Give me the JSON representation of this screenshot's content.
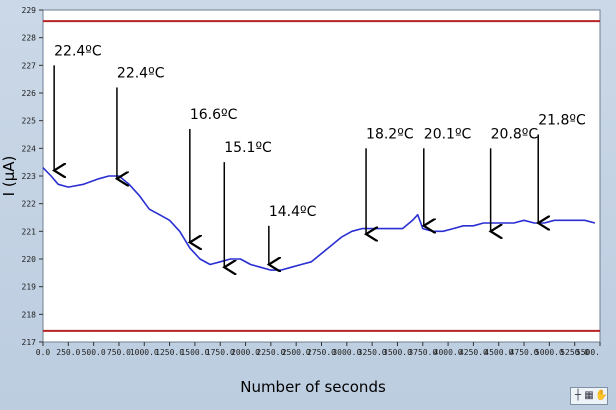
{
  "chart_data": {
    "type": "line",
    "title": "",
    "xlabel": "Number of seconds",
    "ylabel": "I (μA)",
    "xlim": [
      0,
      5500
    ],
    "ylim": [
      217,
      229
    ],
    "grid": false,
    "legend": "none",
    "x_ticks": [
      "0.0",
      "250.0",
      "500.0",
      "750.0",
      "1000.0",
      "1250.0",
      "1500.0",
      "1750.0",
      "2000.0",
      "2250.0",
      "2500.0",
      "2750.0",
      "3000.0",
      "3250.0",
      "3500.0",
      "3750.0",
      "4000.0",
      "4250.0",
      "4500.0",
      "4750.0",
      "5000.0",
      "5250.0",
      "5500."
    ],
    "y_ticks": [
      "217",
      "218",
      "219",
      "220",
      "221",
      "222",
      "223",
      "224",
      "225",
      "226",
      "227",
      "228",
      "229"
    ],
    "series": [
      {
        "color": "#2a2fd2",
        "x": [
          0,
          80,
          150,
          250,
          400,
          550,
          650,
          750,
          850,
          950,
          1050,
          1150,
          1250,
          1350,
          1450,
          1550,
          1650,
          1750,
          1850,
          1950,
          2050,
          2150,
          2250,
          2350,
          2450,
          2550,
          2650,
          2750,
          2850,
          2950,
          3050,
          3150,
          3250,
          3350,
          3450,
          3550,
          3650,
          3700,
          3750,
          3850,
          3950,
          4050,
          4150,
          4250,
          4350,
          4450,
          4550,
          4650,
          4750,
          4850,
          4950,
          5050,
          5150,
          5250,
          5350,
          5450
        ],
        "y": [
          223.3,
          223.0,
          222.7,
          222.6,
          222.7,
          222.9,
          223.0,
          223.0,
          222.7,
          222.3,
          221.8,
          221.6,
          221.4,
          221.0,
          220.4,
          220.0,
          219.8,
          219.9,
          220.0,
          220.0,
          219.8,
          219.7,
          219.6,
          219.6,
          219.7,
          219.8,
          219.9,
          220.2,
          220.5,
          220.8,
          221.0,
          221.1,
          221.1,
          221.1,
          221.1,
          221.1,
          221.4,
          221.6,
          221.1,
          221.0,
          221.0,
          221.1,
          221.2,
          221.2,
          221.3,
          221.3,
          221.3,
          221.3,
          221.4,
          221.3,
          221.3,
          221.4,
          221.4,
          221.4,
          221.4,
          221.3
        ]
      }
    ],
    "reference_lines": [
      {
        "y": 228.6,
        "color": "#b52424"
      },
      {
        "y": 217.4,
        "color": "#b52424"
      }
    ],
    "annotations": [
      {
        "text": "22.4ºC",
        "x": 110,
        "arrow_top_y": 227.0,
        "arrow_tip_y": 223.2
      },
      {
        "text": "22.4ºC",
        "x": 730,
        "arrow_top_y": 226.2,
        "arrow_tip_y": 222.9
      },
      {
        "text": "16.6ºC",
        "x": 1450,
        "arrow_top_y": 224.7,
        "arrow_tip_y": 220.6
      },
      {
        "text": "15.1ºC",
        "x": 1790,
        "arrow_top_y": 223.5,
        "arrow_tip_y": 219.7
      },
      {
        "text": "14.4ºC",
        "x": 2230,
        "arrow_top_y": 221.2,
        "arrow_tip_y": 219.8
      },
      {
        "text": "18.2ºC",
        "x": 3190,
        "arrow_top_y": 224.0,
        "arrow_tip_y": 220.9
      },
      {
        "text": "20.1ºC",
        "x": 3760,
        "arrow_top_y": 224.0,
        "arrow_tip_y": 221.2
      },
      {
        "text": "20.8ºC",
        "x": 4420,
        "arrow_top_y": 224.0,
        "arrow_tip_y": 221.0
      },
      {
        "text": "21.8ºC",
        "x": 4890,
        "arrow_top_y": 224.5,
        "arrow_tip_y": 221.3
      }
    ]
  },
  "toolbar": {
    "icon1": "zoom-icon",
    "icon2": "pan-icon",
    "icon3": "cursor-icon"
  }
}
